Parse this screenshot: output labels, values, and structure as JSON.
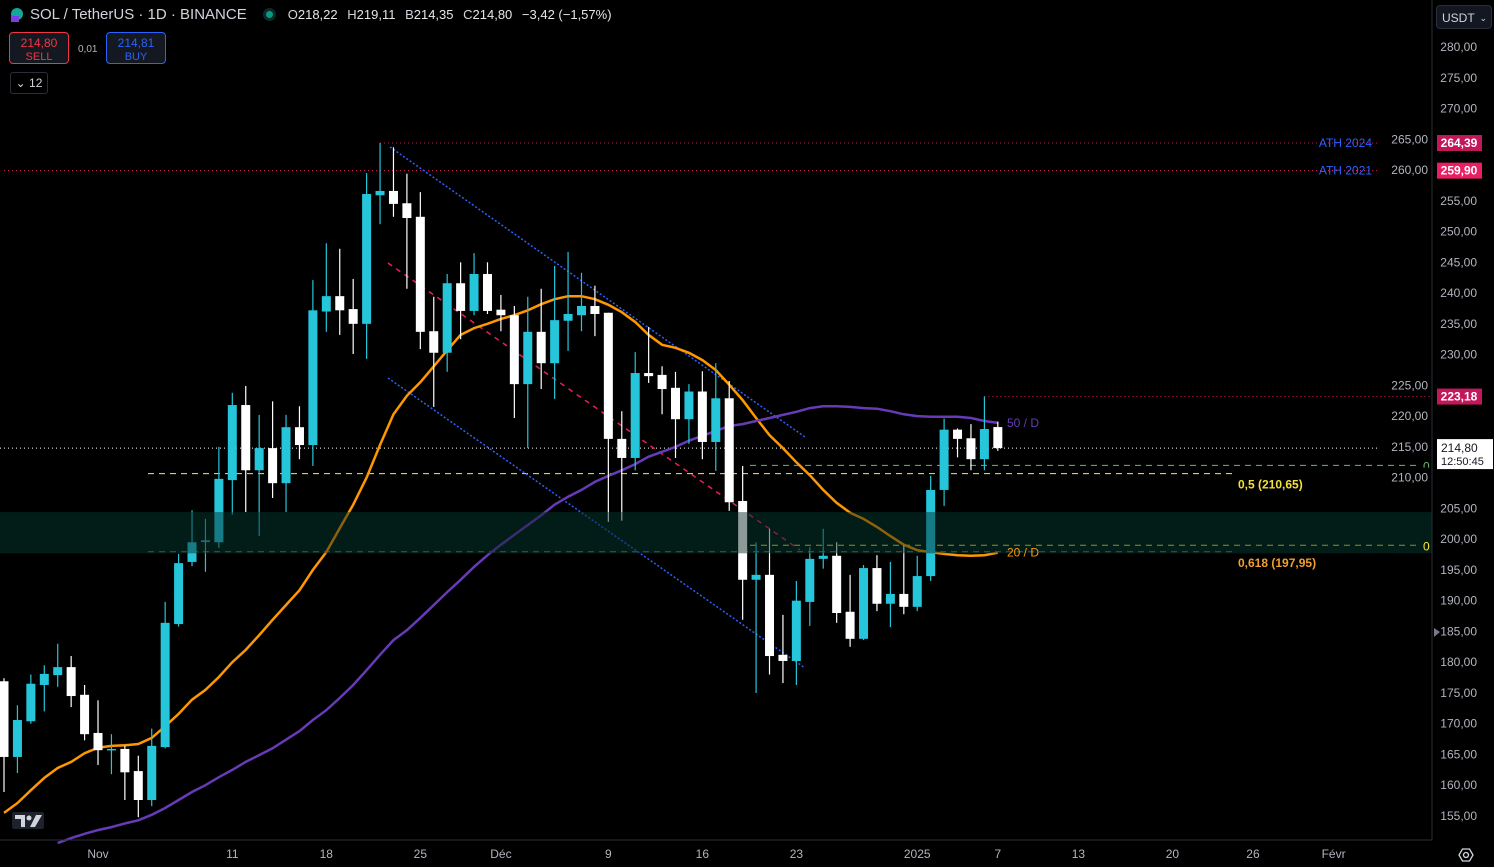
{
  "header": {
    "symbol": "SOL / TetherUS · 1D · BINANCE",
    "open_label": "O",
    "open": "218,22",
    "high_label": "H",
    "high": "219,11",
    "low_label": "B",
    "low": "214,35",
    "close_label": "C",
    "close": "214,80",
    "change": "−3,42 (−1,57%)",
    "status": "market-open-dot"
  },
  "trade": {
    "sell_price": "214,80",
    "sell_label": "SELL",
    "spread": "0,01",
    "buy_price": "214,81",
    "buy_label": "BUY",
    "indicators_count": "12"
  },
  "currency_select": "USDT",
  "colors": {
    "up": "#26c6da",
    "down": "#ffffff",
    "ma20": "#ff9800",
    "ma50": "#673ab7",
    "ath2024": "#c2185b",
    "ath2021": "#e91e63",
    "fib": "#ffeb3b",
    "zone": "#03201a"
  },
  "chart_data": {
    "type": "candlestick",
    "title": "SOL / TetherUS · 1D · BINANCE",
    "ylim": [
      152,
      285
    ],
    "grid": false,
    "yticks": [
      "280,00",
      "275,00",
      "270,00",
      "265,00",
      "260,00",
      "255,00",
      "250,00",
      "245,00",
      "240,00",
      "235,00",
      "230,00",
      "225,00",
      "220,00",
      "215,00",
      "210,00",
      "205,00",
      "200,00",
      "195,00",
      "190,00",
      "185,00",
      "180,00",
      "175,00",
      "170,00",
      "165,00",
      "160,00",
      "155,00"
    ],
    "ytick_values": [
      280,
      275,
      270,
      265,
      260,
      255,
      250,
      245,
      240,
      235,
      230,
      225,
      220,
      215,
      210,
      205,
      200,
      195,
      190,
      185,
      180,
      175,
      170,
      165,
      160,
      155
    ],
    "xticks": [
      {
        "label": "Nov",
        "date": "2024-11-01"
      },
      {
        "label": "11",
        "date": "2024-11-11"
      },
      {
        "label": "18",
        "date": "2024-11-18"
      },
      {
        "label": "25",
        "date": "2024-11-25"
      },
      {
        "label": "Déc",
        "date": "2024-12-01"
      },
      {
        "label": "9",
        "date": "2024-12-09"
      },
      {
        "label": "16",
        "date": "2024-12-16"
      },
      {
        "label": "23",
        "date": "2024-12-23"
      },
      {
        "label": "2025",
        "date": "2025-01-01"
      },
      {
        "label": "7",
        "date": "2025-01-07"
      },
      {
        "label": "13",
        "date": "2025-01-13"
      },
      {
        "label": "20",
        "date": "2025-01-20"
      },
      {
        "label": "26",
        "date": "2025-01-26"
      },
      {
        "label": "Févr",
        "date": "2025-02-01"
      }
    ],
    "candles_fields": [
      "date",
      "open",
      "high",
      "low",
      "close"
    ],
    "candles": [
      [
        "2024-10-25",
        176.9,
        177.4,
        158.9,
        164.6
      ],
      [
        "2024-10-26",
        164.6,
        173,
        162,
        170.6
      ],
      [
        "2024-10-27",
        170.4,
        178,
        170,
        176.5
      ],
      [
        "2024-10-28",
        176.3,
        179.5,
        172,
        178.1
      ],
      [
        "2024-10-29",
        177.9,
        183,
        176,
        179.2
      ],
      [
        "2024-10-30",
        179.2,
        181,
        172.7,
        174.5
      ],
      [
        "2024-10-31",
        174.7,
        176.3,
        167.3,
        168.3
      ],
      [
        "2024-11-01",
        168.5,
        173.8,
        163.3,
        165.7
      ],
      [
        "2024-11-02",
        165.7,
        168.3,
        161.8,
        165.9
      ],
      [
        "2024-11-03",
        165.9,
        166.4,
        157.6,
        162.1
      ],
      [
        "2024-11-04",
        162.3,
        164.8,
        154.8,
        157.6
      ],
      [
        "2024-11-05",
        157.6,
        169.2,
        156.6,
        166.4
      ],
      [
        "2024-11-06",
        166.2,
        189.8,
        166,
        186.4
      ],
      [
        "2024-11-07",
        186.2,
        197.6,
        185.8,
        196.1
      ],
      [
        "2024-11-08",
        196.3,
        204.7,
        195.6,
        199.5
      ],
      [
        "2024-11-09",
        199.7,
        203.3,
        194.7,
        199.8
      ],
      [
        "2024-11-10",
        199.5,
        215,
        198.6,
        209.8
      ],
      [
        "2024-11-11",
        209.6,
        223.8,
        204,
        221.8
      ],
      [
        "2024-11-12",
        221.8,
        224.9,
        204.4,
        211.2
      ],
      [
        "2024-11-13",
        211.2,
        220.2,
        200.5,
        214.8
      ],
      [
        "2024-11-14",
        214.8,
        222.4,
        206.7,
        209.1
      ],
      [
        "2024-11-15",
        209.1,
        220.2,
        204.4,
        218.2
      ],
      [
        "2024-11-16",
        218.2,
        221.6,
        213,
        215.3
      ],
      [
        "2024-11-17",
        215.3,
        242.1,
        211.9,
        237.2
      ],
      [
        "2024-11-18",
        237,
        248.1,
        233.7,
        239.5
      ],
      [
        "2024-11-19",
        239.5,
        247.2,
        233.2,
        237.2
      ],
      [
        "2024-11-20",
        237.4,
        242.3,
        230.1,
        235
      ],
      [
        "2024-11-21",
        235,
        259.5,
        229.3,
        256.1
      ],
      [
        "2024-11-22",
        255.9,
        264.39,
        251.2,
        256.6
      ],
      [
        "2024-11-23",
        256.6,
        263.7,
        252.4,
        254.5
      ],
      [
        "2024-11-24",
        254.6,
        259.4,
        240.7,
        252.2
      ],
      [
        "2024-11-25",
        252.4,
        256.4,
        230.9,
        233.7
      ],
      [
        "2024-11-26",
        233.8,
        239.4,
        221.5,
        230.3
      ],
      [
        "2024-11-27",
        230.3,
        243.1,
        227.2,
        241.6
      ],
      [
        "2024-11-28",
        241.6,
        245,
        232.5,
        237.1
      ],
      [
        "2024-11-29",
        237.1,
        246.5,
        236.4,
        243.1
      ],
      [
        "2024-11-30",
        243.1,
        245,
        236.6,
        237.1
      ],
      [
        "2024-12-01",
        237.3,
        239.7,
        233.8,
        236.4
      ],
      [
        "2024-12-02",
        236.4,
        237.9,
        219.7,
        225.2
      ],
      [
        "2024-12-03",
        225.2,
        239.4,
        214.8,
        233.7
      ],
      [
        "2024-12-04",
        233.7,
        240.7,
        224.4,
        228.6
      ],
      [
        "2024-12-05",
        228.6,
        244.4,
        222.8,
        235.6
      ],
      [
        "2024-12-06",
        235.5,
        246.7,
        230.6,
        236.6
      ],
      [
        "2024-12-07",
        236.4,
        243.3,
        233.8,
        237.9
      ],
      [
        "2024-12-08",
        237.9,
        241.2,
        233,
        236.6
      ],
      [
        "2024-12-09",
        236.8,
        236.8,
        202.8,
        216.3
      ],
      [
        "2024-12-10",
        216.3,
        220.8,
        203,
        213.2
      ],
      [
        "2024-12-11",
        213.2,
        230.4,
        211.2,
        227
      ],
      [
        "2024-12-12",
        227,
        234.5,
        225.4,
        226.5
      ],
      [
        "2024-12-13",
        226.7,
        228.1,
        220.3,
        224.4
      ],
      [
        "2024-12-14",
        224.6,
        227.2,
        213.2,
        219.5
      ],
      [
        "2024-12-15",
        219.5,
        225.2,
        215.5,
        224
      ],
      [
        "2024-12-16",
        224,
        227.3,
        213,
        215.8
      ],
      [
        "2024-12-17",
        215.8,
        228.6,
        211.1,
        222.9
      ],
      [
        "2024-12-18",
        222.9,
        225.7,
        204.6,
        206
      ],
      [
        "2024-12-19",
        206.2,
        211.9,
        186.9,
        193.4
      ],
      [
        "2024-12-20",
        193.4,
        199.5,
        175,
        194.2
      ],
      [
        "2024-12-21",
        194.2,
        201.7,
        178,
        181
      ],
      [
        "2024-12-22",
        181.2,
        187.7,
        176.6,
        180.2
      ],
      [
        "2024-12-23",
        180.2,
        193.2,
        176.3,
        190
      ],
      [
        "2024-12-24",
        189.8,
        198.7,
        185.9,
        196.8
      ],
      [
        "2024-12-25",
        196.8,
        201.7,
        195.2,
        197.3
      ],
      [
        "2024-12-26",
        197.3,
        199.5,
        186.4,
        188
      ],
      [
        "2024-12-27",
        188.2,
        194.2,
        182.5,
        183.8
      ],
      [
        "2024-12-28",
        183.8,
        195.8,
        183.6,
        195.3
      ],
      [
        "2024-12-29",
        195.3,
        197.4,
        188.3,
        189.5
      ],
      [
        "2024-12-30",
        189.5,
        196.3,
        185.7,
        191.1
      ],
      [
        "2024-12-31",
        191.1,
        199,
        187.8,
        189
      ],
      [
        "2025-01-01",
        189,
        197.3,
        188.3,
        194
      ],
      [
        "2025-01-02",
        194,
        210.3,
        193.2,
        208
      ],
      [
        "2025-01-03",
        208,
        219.6,
        205.4,
        217.8
      ],
      [
        "2025-01-04",
        217.8,
        218,
        213.3,
        216.3
      ],
      [
        "2025-01-05",
        216.4,
        218.7,
        211.2,
        213
      ],
      [
        "2025-01-06",
        213,
        223.18,
        211.2,
        217.9
      ],
      [
        "2025-01-07",
        218.22,
        219.11,
        214.35,
        214.8
      ]
    ],
    "series": [
      {
        "name": "20 / D",
        "color": "#ff9800",
        "values": [
          155.5,
          157.1,
          159.2,
          161.2,
          162.8,
          163.8,
          165.2,
          166.1,
          166.4,
          166.5,
          166.7,
          167.7,
          169.6,
          171.6,
          173.9,
          175.5,
          177.6,
          180,
          182,
          184.4,
          186.9,
          189.3,
          191.7,
          195,
          197.9,
          201.8,
          205.6,
          210,
          215.3,
          220.3,
          223.3,
          225.5,
          228.1,
          230.7,
          233.2,
          234.3,
          235,
          235.8,
          236.4,
          237.2,
          238.2,
          239,
          239.5,
          239.5,
          239,
          238.1,
          236.9,
          235.3,
          233.2,
          231.6,
          231.1,
          230.3,
          229.1,
          227.5,
          225.1,
          222.6,
          219.7,
          216.9,
          214.8,
          212.5,
          210.4,
          208,
          205.9,
          204.3,
          203.3,
          202,
          200.5,
          199.1,
          198.2,
          197.9,
          197.6,
          197.4,
          197.3,
          197.4,
          197.8
        ]
      },
      {
        "name": "50 / D",
        "color": "#673ab7",
        "values": [
          null,
          null,
          null,
          null,
          150.6,
          151.4,
          152.1,
          152.7,
          153.2,
          153.8,
          154.3,
          155.2,
          156.3,
          157.6,
          158.9,
          160,
          161.3,
          162.5,
          163.8,
          164.9,
          166,
          167.4,
          168.8,
          170.6,
          172.2,
          174.2,
          176.3,
          178.7,
          181.2,
          183.6,
          185.2,
          187.2,
          189.3,
          191.4,
          193.4,
          195.5,
          197.4,
          199.1,
          200.7,
          202.3,
          203.9,
          205.6,
          206.9,
          208,
          209.3,
          210.3,
          211.2,
          212.2,
          213.4,
          214.2,
          215,
          216,
          216.8,
          217.6,
          218.4,
          218.7,
          219.2,
          219.7,
          220.2,
          220.7,
          221.3,
          221.6,
          221.6,
          221.5,
          221.3,
          221.2,
          220.8,
          220.3,
          220,
          219.9,
          219.9,
          219.9,
          219.7,
          219.2,
          218.9
        ]
      }
    ],
    "levels": [
      {
        "label": "ATH 2024",
        "price": 264.39,
        "price_label": "264,39",
        "color": "#c2185b",
        "from": "2024-11-22"
      },
      {
        "label": "ATH 2021",
        "price": 259.9,
        "price_label": "259,90",
        "color": "#e91e63",
        "from": "2024-10-25"
      },
      {
        "label": "",
        "price": 223.18,
        "price_label": "223,18",
        "color": "#c2185b",
        "from": "2025-01-06"
      }
    ],
    "last_price": {
      "price": 214.8,
      "label": "214,80",
      "countdown": "12:50:45"
    },
    "fib": [
      {
        "label": "0,5 (210,65)",
        "price": 210.65,
        "color": "#ffeb3b",
        "label_color": "#f2e03c"
      },
      {
        "label": "0,618 (197,95)",
        "price": 197.95,
        "color": "#8a8a4a",
        "label_color": "#f0a030"
      }
    ],
    "fib_right": [
      {
        "label": "0",
        "price": 212.0,
        "color": "#66bb6a"
      },
      {
        "label": "0",
        "price": 199.0,
        "color": "#ffeb3b"
      }
    ],
    "zone": {
      "top": 204.4,
      "bottom": 197.7
    },
    "ma_labels": {
      "ma50": "50 / D",
      "ma20": "20 / D"
    }
  }
}
